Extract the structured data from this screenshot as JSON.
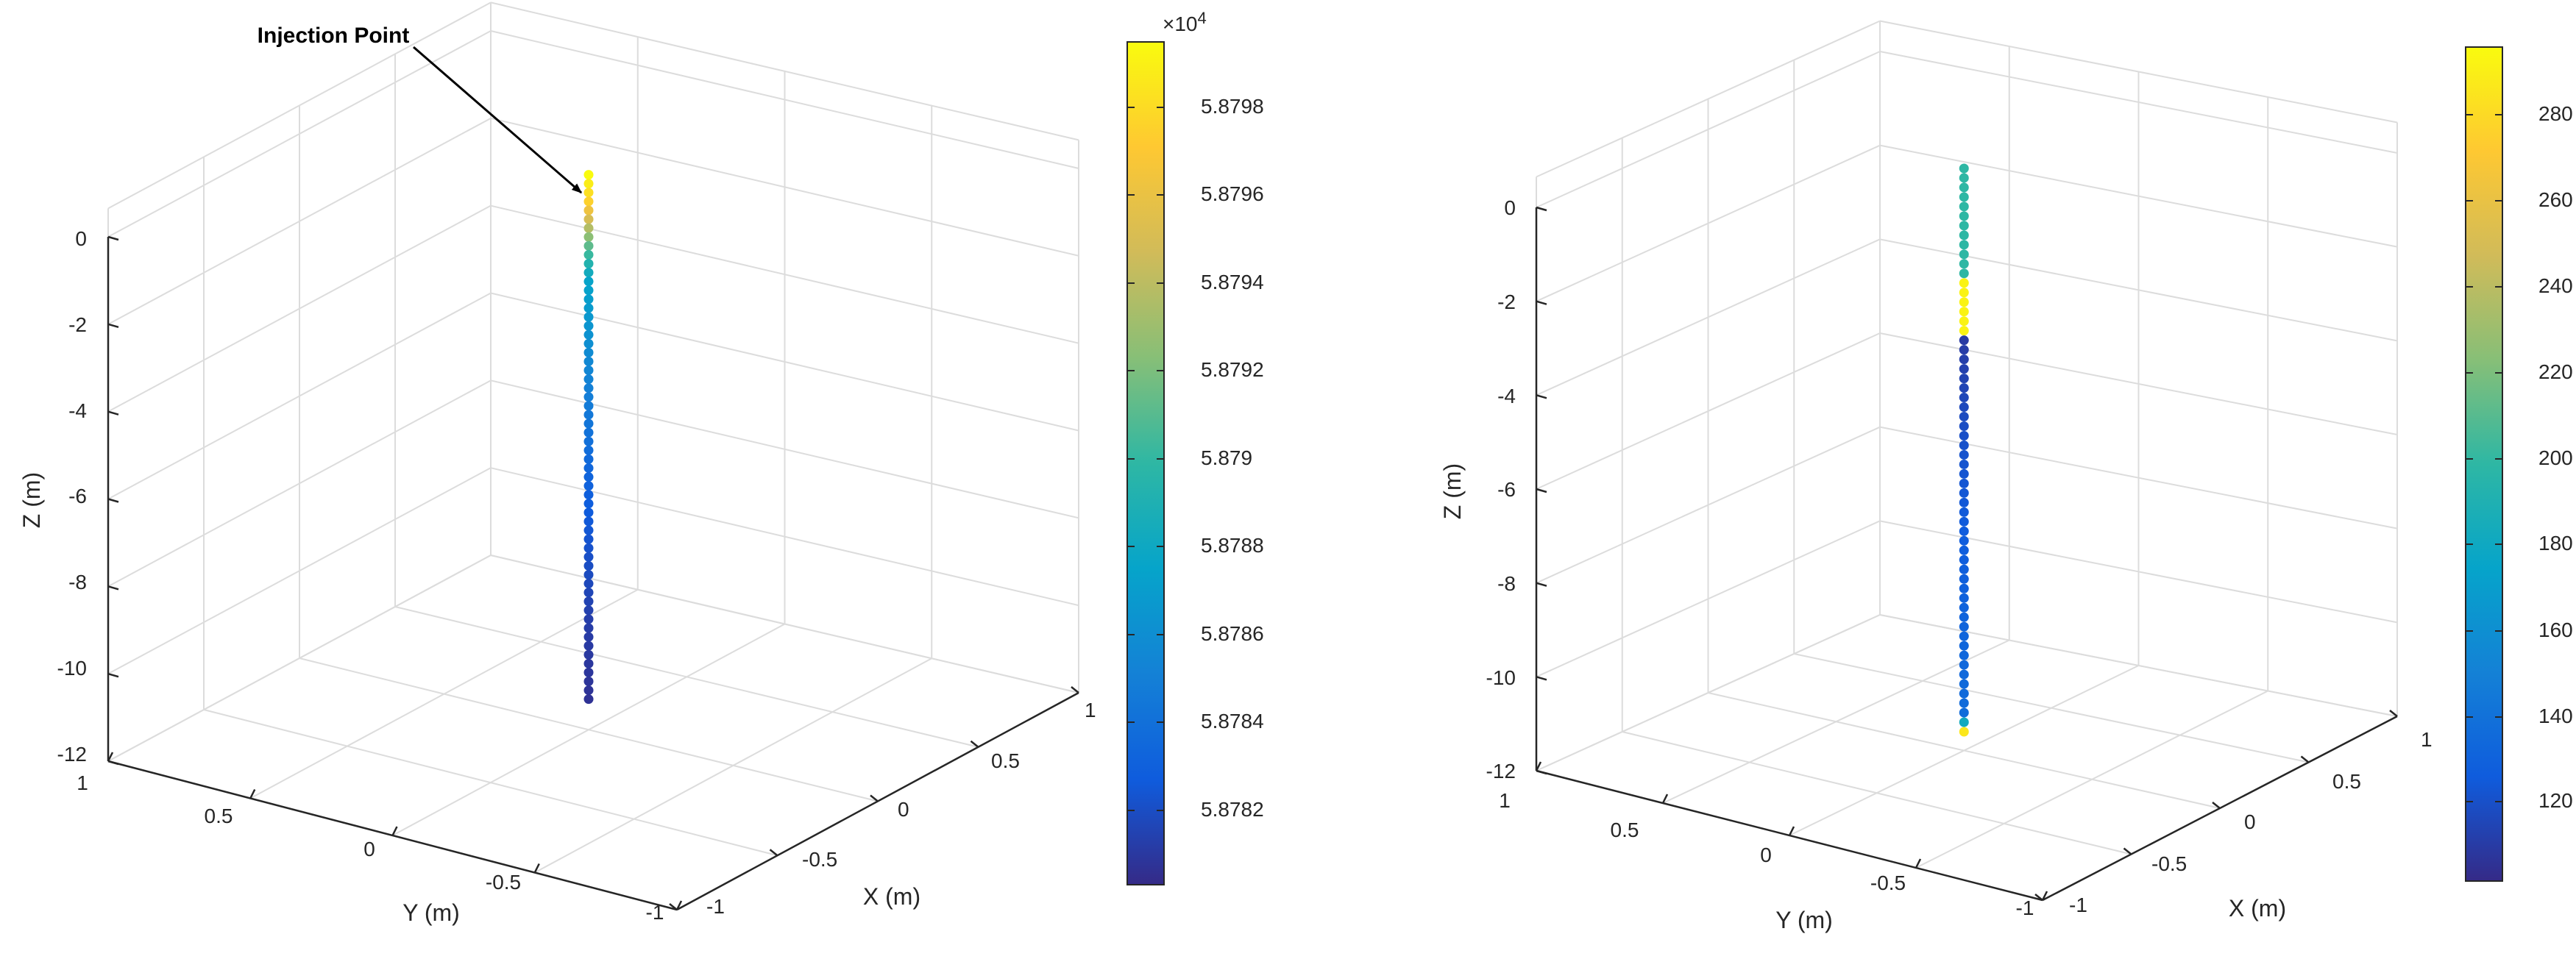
{
  "chart_data": [
    {
      "type": "scatter3d",
      "annotation": "Injection Point",
      "xlabel": "X (m)",
      "ylabel": "Y (m)",
      "zlabel": "Z (m)",
      "xlim": [
        -1,
        1
      ],
      "ylim": [
        -1,
        1
      ],
      "zlim": [
        -12,
        0
      ],
      "x_ticks": [
        "-1",
        "-0.5",
        "0",
        "0.5",
        "1"
      ],
      "y_ticks": [
        "1",
        "0.5",
        "0",
        "-0.5",
        "-1"
      ],
      "z_ticks": [
        "0",
        "-2",
        "-4",
        "-6",
        "-8",
        "-10",
        "-12"
      ],
      "grid": true,
      "colormap": "parula",
      "colorbar": {
        "location": "right",
        "exponent_label": "×10",
        "exponent": "4",
        "ticks": [
          "5.8782",
          "5.8784",
          "5.8786",
          "5.8788",
          "5.879",
          "5.8792",
          "5.8794",
          "5.8796",
          "5.8798"
        ],
        "range": [
          58780.2,
          58799.6
        ]
      },
      "points": {
        "x": 0,
        "y": 0,
        "z_range": [
          0.7,
          -11.3
        ],
        "count": 60,
        "color_profile": [
          [
            0.0,
            1.0
          ],
          [
            0.05,
            0.9
          ],
          [
            0.14,
            0.55
          ],
          [
            0.2,
            0.38
          ],
          [
            0.35,
            0.28
          ],
          [
            0.6,
            0.14
          ],
          [
            0.85,
            0.05
          ],
          [
            1.0,
            0.02
          ]
        ]
      }
    },
    {
      "type": "scatter3d",
      "xlabel": "X (m)",
      "ylabel": "Y (m)",
      "zlabel": "Z (m)",
      "xlim": [
        -1,
        1
      ],
      "ylim": [
        -1,
        1
      ],
      "zlim": [
        -12,
        0
      ],
      "x_ticks": [
        "-1",
        "-0.5",
        "0",
        "0.5",
        "1"
      ],
      "y_ticks": [
        "1",
        "0.5",
        "0",
        "-0.5",
        "-1"
      ],
      "z_ticks": [
        "0",
        "-2",
        "-4",
        "-6",
        "-8",
        "-10",
        "-12"
      ],
      "grid": true,
      "colormap": "parula",
      "colorbar": {
        "location": "right",
        "ticks": [
          "120",
          "140",
          "160",
          "180",
          "200",
          "220",
          "240",
          "260",
          "280"
        ],
        "range": [
          104,
          297
        ]
      },
      "points": {
        "x": 0,
        "y": 0,
        "z_range": [
          0.4,
          -11.6
        ],
        "count": 60,
        "color_profile": [
          [
            0.0,
            0.5
          ],
          [
            0.2,
            0.5
          ],
          [
            0.201,
            0.98
          ],
          [
            0.3,
            0.98
          ],
          [
            0.301,
            0.04
          ],
          [
            0.5,
            0.1
          ],
          [
            0.97,
            0.18
          ],
          [
            0.985,
            0.45
          ],
          [
            1.0,
            0.95
          ]
        ]
      }
    }
  ]
}
